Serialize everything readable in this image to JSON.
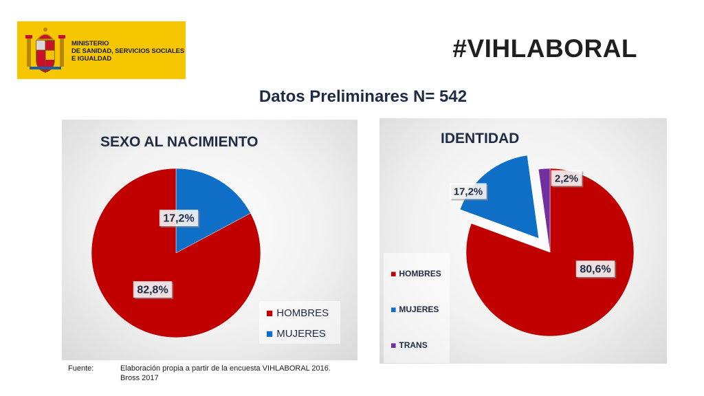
{
  "header": {
    "ministry_lines": [
      "MINISTERIO",
      "DE SANIDAD, SERVICIOS SOCIALES",
      "E IGUALDAD"
    ],
    "hashtag": "#VIHLABORAL",
    "title": "Datos Preliminares N= 542"
  },
  "colors": {
    "logo_bg": "#f6c700",
    "red": "#c00000",
    "blue": "#0f6fc6",
    "purple": "#7030a0"
  },
  "icons": {
    "logo": "spanish-coat-of-arms-icon"
  },
  "chart_data": [
    {
      "type": "pie",
      "title": "SEXO AL NACIMIENTO",
      "categories": [
        "HOMBRES",
        "MUJERES"
      ],
      "values": [
        82.8,
        17.2
      ],
      "labels": [
        "82,8%",
        "17,2%"
      ],
      "legend_position": "bottom-right"
    },
    {
      "type": "pie",
      "title": "IDENTIDAD",
      "categories": [
        "HOMBRES",
        "MUJERES",
        "TRANS"
      ],
      "values": [
        80.6,
        17.2,
        2.2
      ],
      "labels": [
        "80,6%",
        "17,2%",
        "2,2%"
      ],
      "exploded": [
        "MUJERES"
      ],
      "legend_position": "left"
    }
  ],
  "footer": {
    "source_label": "Fuente:",
    "source_text": "Elaboración propia a partir de la encuesta  VIHLABORAL 2016.",
    "source_text2": "Bross 2017"
  }
}
